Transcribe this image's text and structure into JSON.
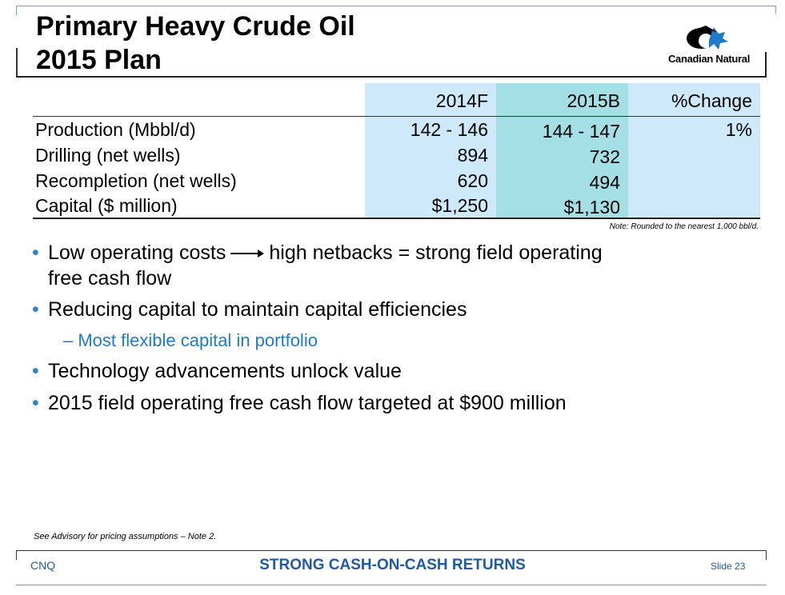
{
  "slide": {
    "title_line1": "Primary Heavy Crude Oil",
    "title_line2": "2015 Plan",
    "logo_text": "Canadian Natural",
    "colors": {
      "accent": "#1f5aa6",
      "bullet": "#2e86c1",
      "band_light": "#cde9fa",
      "band_teal": "#a5dfe6"
    }
  },
  "table": {
    "headers": [
      "2014F",
      "2015B",
      "%Change"
    ],
    "rows": [
      {
        "label": "Production (Mbbl/d)",
        "v2014": "142 - 146",
        "v2015": "144 - 147",
        "change": "1%"
      },
      {
        "label": "Drilling (net wells)",
        "v2014": "894",
        "v2015": "732",
        "change": ""
      },
      {
        "label": "Recompletion (net wells)",
        "v2014": "620",
        "v2015": "494",
        "change": ""
      },
      {
        "label": "Capital ($ million)",
        "v2014": "$1,250",
        "v2015": "$1,130",
        "change": ""
      }
    ],
    "note": "Note: Rounded to the nearest 1,000 bbl/d."
  },
  "bullets": {
    "b1_part1": "Low operating costs",
    "b1_part2": "high netbacks  =  strong field operating",
    "b1_line2": "free cash flow",
    "b2": "Reducing capital to maintain capital efficiencies",
    "b2_sub": "– Most flexible capital in portfolio",
    "b3": "Technology advancements unlock value",
    "b4": "2015 field operating free cash flow targeted at $900 million",
    "bullet_char": "•"
  },
  "footer": {
    "advisory": "See Advisory for pricing assumptions – Note 2.",
    "left": "CNQ",
    "center": "STRONG CASH-ON-CASH RETURNS",
    "right": "Slide 23"
  }
}
